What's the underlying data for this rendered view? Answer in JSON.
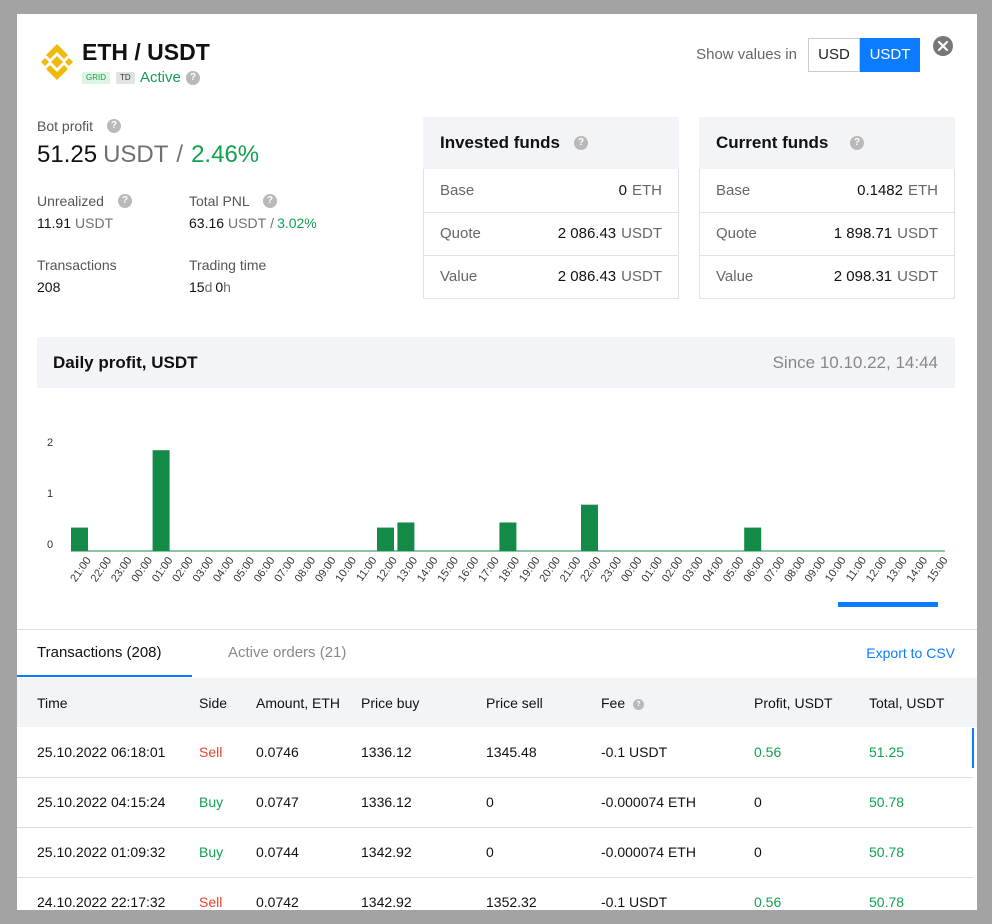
{
  "header": {
    "pair": "ETH / USDT",
    "badges": [
      "GRID",
      "TD"
    ],
    "status": "Active",
    "show_values_in": "Show values in",
    "currencies": [
      "USD",
      "USDT"
    ],
    "selected_currency": "USDT"
  },
  "help": "?",
  "stats": {
    "bot_profit": {
      "label": "Bot profit",
      "value": "51.25",
      "unit": "USDT",
      "separator": "/",
      "percent": "2.46%"
    },
    "unrealized": {
      "label": "Unrealized",
      "value": "11.91",
      "unit": "USDT"
    },
    "total_pnl": {
      "label": "Total PNL",
      "value": "63.16",
      "unit": "USDT",
      "separator": "/",
      "percent": "3.02%"
    },
    "transactions": {
      "label": "Transactions",
      "value": "208"
    },
    "trading_time": {
      "label": "Trading time",
      "days": "15",
      "days_unit": "d",
      "hours": "0",
      "hours_unit": "h"
    }
  },
  "funds": [
    {
      "title": "Invested funds",
      "rows": [
        {
          "label": "Base",
          "value": "0",
          "unit": "ETH"
        },
        {
          "label": "Quote",
          "value": "2 086.43",
          "unit": "USDT"
        },
        {
          "label": "Value",
          "value": "2 086.43",
          "unit": "USDT"
        }
      ]
    },
    {
      "title": "Current funds",
      "rows": [
        {
          "label": "Base",
          "value": "0.1482",
          "unit": "ETH"
        },
        {
          "label": "Quote",
          "value": "1 898.71",
          "unit": "USDT"
        },
        {
          "label": "Value",
          "value": "2 098.31",
          "unit": "USDT"
        }
      ]
    }
  ],
  "daily_profit": {
    "title": "Daily profit, USDT",
    "since": "Since 10.10.22, 14:44"
  },
  "chart_data": {
    "type": "bar",
    "categories": [
      "21:00",
      "22:00",
      "23:00",
      "00:00",
      "01:00",
      "02:00",
      "03:00",
      "04:00",
      "05:00",
      "06:00",
      "07:00",
      "08:00",
      "09:00",
      "10:00",
      "11:00",
      "12:00",
      "13:00",
      "14:00",
      "15:00",
      "16:00",
      "17:00",
      "18:00",
      "19:00",
      "20:00",
      "21:00",
      "22:00",
      "23:00",
      "00:00",
      "01:00",
      "02:00",
      "03:00",
      "04:00",
      "05:00",
      "06:00",
      "07:00",
      "08:00",
      "09:00",
      "10:00",
      "11:00",
      "12:00",
      "13:00",
      "14:00",
      "15:00"
    ],
    "values": [
      0.46,
      0,
      0,
      0,
      1.98,
      0,
      0,
      0,
      0,
      0,
      0,
      0,
      0,
      0,
      0,
      0.46,
      0.56,
      0,
      0,
      0,
      0,
      0.56,
      0,
      0,
      0,
      0.91,
      0,
      0,
      0,
      0,
      0,
      0,
      0,
      0.46,
      0,
      0,
      0,
      0,
      0,
      0,
      0,
      0,
      0
    ],
    "color": "#138a47",
    "ylim": [
      0,
      2.2
    ],
    "yticks": [
      0,
      1,
      2
    ]
  },
  "tabs": [
    {
      "label": "Transactions (208)",
      "active": true
    },
    {
      "label": "Active orders (21)",
      "active": false
    }
  ],
  "export": "Export to CSV",
  "side_colors": {
    "Sell": "#e5432f",
    "Buy": "#12a150"
  },
  "table": {
    "columns": [
      "Time",
      "Side",
      "Amount, ETH",
      "Price buy",
      "Price sell",
      "Fee",
      "Profit, USDT",
      "Total, USDT"
    ],
    "rows": [
      [
        "25.10.2022 06:18:01",
        "Sell",
        "0.0746",
        "1336.12",
        "1345.48",
        "-0.1 USDT",
        "0.56",
        "51.25"
      ],
      [
        "25.10.2022 04:15:24",
        "Buy",
        "0.0747",
        "1336.12",
        "0",
        "-0.000074 ETH",
        "0",
        "50.78"
      ],
      [
        "25.10.2022 01:09:32",
        "Buy",
        "0.0744",
        "1342.92",
        "0",
        "-0.000074 ETH",
        "0",
        "50.78"
      ],
      [
        "24.10.2022 22:17:32",
        "Sell",
        "0.0742",
        "1342.92",
        "1352.32",
        "-0.1 USDT",
        "0.56",
        "50.78"
      ]
    ]
  }
}
